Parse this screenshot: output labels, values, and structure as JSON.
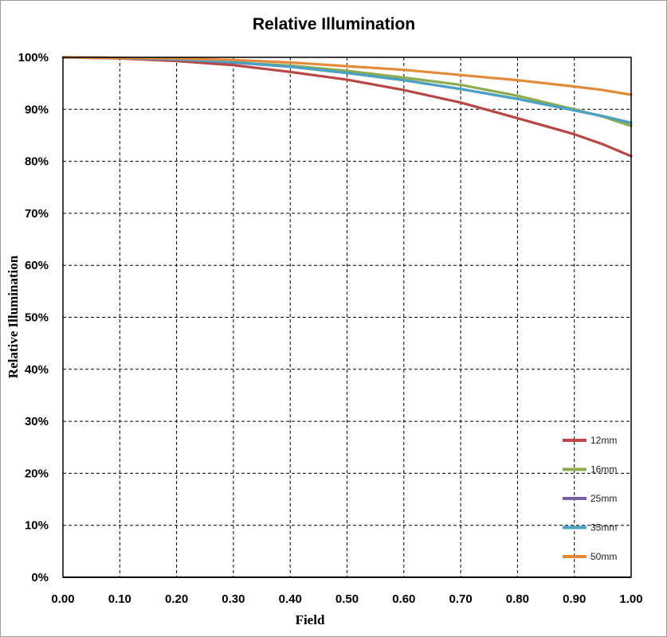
{
  "chart_data": {
    "type": "line",
    "title": "Relative Illumination",
    "xlabel": "Field",
    "ylabel": "Relative Illumination",
    "xlim": [
      0,
      1
    ],
    "ylim": [
      0,
      100
    ],
    "grid": true,
    "legend_position": "bottom-right",
    "x_ticks": [
      "0.00",
      "0.10",
      "0.20",
      "0.30",
      "0.40",
      "0.50",
      "0.60",
      "0.70",
      "0.80",
      "0.90",
      "1.00"
    ],
    "y_ticks": [
      "0%",
      "10%",
      "20%",
      "30%",
      "40%",
      "50%",
      "60%",
      "70%",
      "80%",
      "90%",
      "100%"
    ],
    "x": [
      0.0,
      0.1,
      0.2,
      0.3,
      0.4,
      0.5,
      0.6,
      0.7,
      0.8,
      0.9,
      0.95,
      1.0
    ],
    "series": [
      {
        "name": "12mm",
        "color": "#b84746",
        "values": [
          100,
          99.8,
          99.3,
          98.5,
          97.2,
          95.7,
          93.7,
          91.3,
          88.3,
          85.2,
          83.3,
          81.0
        ]
      },
      {
        "name": "16mm",
        "color": "#8dad4c",
        "values": [
          100,
          99.9,
          99.6,
          99.0,
          98.4,
          97.4,
          96.1,
          94.7,
          92.6,
          90.0,
          88.6,
          86.8
        ]
      },
      {
        "name": "25mm",
        "color": "#7a5ea3",
        "values": [
          100,
          99.9,
          99.6,
          99.0,
          98.2,
          97.0,
          95.6,
          93.9,
          92.0,
          89.8,
          88.7,
          87.4
        ]
      },
      {
        "name": "35mm",
        "color": "#4aa3c4",
        "values": [
          100,
          99.9,
          99.6,
          99.1,
          98.2,
          97.0,
          95.6,
          93.9,
          92.0,
          89.8,
          88.7,
          87.4
        ]
      },
      {
        "name": "50mm",
        "color": "#e38b3b",
        "values": [
          100,
          99.9,
          99.8,
          99.5,
          99.0,
          98.3,
          97.6,
          96.6,
          95.6,
          94.4,
          93.7,
          92.8
        ]
      }
    ]
  }
}
